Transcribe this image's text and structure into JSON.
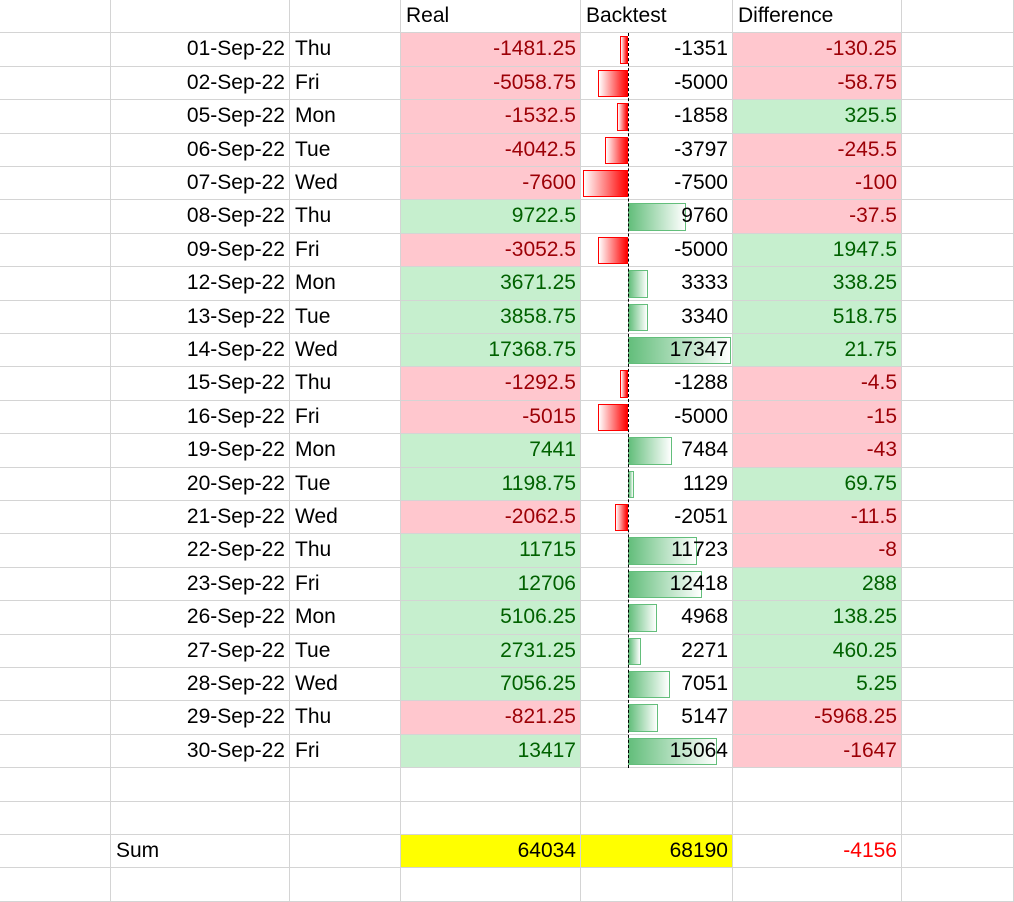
{
  "headers": {
    "real": "Real",
    "backtest": "Backtest",
    "difference": "Difference"
  },
  "rows": [
    {
      "date": "01-Sep-22",
      "day": "Thu",
      "real": "-1481.25",
      "backtest": "-1351",
      "difference": "-130.25"
    },
    {
      "date": "02-Sep-22",
      "day": "Fri",
      "real": "-5058.75",
      "backtest": "-5000",
      "difference": "-58.75"
    },
    {
      "date": "05-Sep-22",
      "day": "Mon",
      "real": "-1532.5",
      "backtest": "-1858",
      "difference": "325.5"
    },
    {
      "date": "06-Sep-22",
      "day": "Tue",
      "real": "-4042.5",
      "backtest": "-3797",
      "difference": "-245.5"
    },
    {
      "date": "07-Sep-22",
      "day": "Wed",
      "real": "-7600",
      "backtest": "-7500",
      "difference": "-100"
    },
    {
      "date": "08-Sep-22",
      "day": "Thu",
      "real": "9722.5",
      "backtest": "9760",
      "difference": "-37.5"
    },
    {
      "date": "09-Sep-22",
      "day": "Fri",
      "real": "-3052.5",
      "backtest": "-5000",
      "difference": "1947.5"
    },
    {
      "date": "12-Sep-22",
      "day": "Mon",
      "real": "3671.25",
      "backtest": "3333",
      "difference": "338.25"
    },
    {
      "date": "13-Sep-22",
      "day": "Tue",
      "real": "3858.75",
      "backtest": "3340",
      "difference": "518.75"
    },
    {
      "date": "14-Sep-22",
      "day": "Wed",
      "real": "17368.75",
      "backtest": "17347",
      "difference": "21.75"
    },
    {
      "date": "15-Sep-22",
      "day": "Thu",
      "real": "-1292.5",
      "backtest": "-1288",
      "difference": "-4.5"
    },
    {
      "date": "16-Sep-22",
      "day": "Fri",
      "real": "-5015",
      "backtest": "-5000",
      "difference": "-15"
    },
    {
      "date": "19-Sep-22",
      "day": "Mon",
      "real": "7441",
      "backtest": "7484",
      "difference": "-43"
    },
    {
      "date": "20-Sep-22",
      "day": "Tue",
      "real": "1198.75",
      "backtest": "1129",
      "difference": "69.75"
    },
    {
      "date": "21-Sep-22",
      "day": "Wed",
      "real": "-2062.5",
      "backtest": "-2051",
      "difference": "-11.5"
    },
    {
      "date": "22-Sep-22",
      "day": "Thu",
      "real": "11715",
      "backtest": "11723",
      "difference": "-8"
    },
    {
      "date": "23-Sep-22",
      "day": "Fri",
      "real": "12706",
      "backtest": "12418",
      "difference": "288"
    },
    {
      "date": "26-Sep-22",
      "day": "Mon",
      "real": "5106.25",
      "backtest": "4968",
      "difference": "138.25"
    },
    {
      "date": "27-Sep-22",
      "day": "Tue",
      "real": "2731.25",
      "backtest": "2271",
      "difference": "460.25"
    },
    {
      "date": "28-Sep-22",
      "day": "Wed",
      "real": "7056.25",
      "backtest": "7051",
      "difference": "5.25"
    },
    {
      "date": "29-Sep-22",
      "day": "Thu",
      "real": "-821.25",
      "backtest": "5147",
      "difference": "-5968.25"
    },
    {
      "date": "30-Sep-22",
      "day": "Fri",
      "real": "13417",
      "backtest": "15064",
      "difference": "-1647"
    }
  ],
  "sum": {
    "label": "Sum",
    "real": "64034",
    "backtest": "68190",
    "difference": "-4156"
  },
  "colors": {
    "pos_fill": "#c6efce",
    "pos_text": "#006100",
    "neg_fill": "#ffc7ce",
    "neg_text": "#9c0006",
    "sum_fill": "#ffff00",
    "sum_diff_text": "#ff0000",
    "bar_pos": "#63be7b",
    "bar_neg": "#ff0000"
  },
  "databar": {
    "min": -7500,
    "max": 17347
  }
}
